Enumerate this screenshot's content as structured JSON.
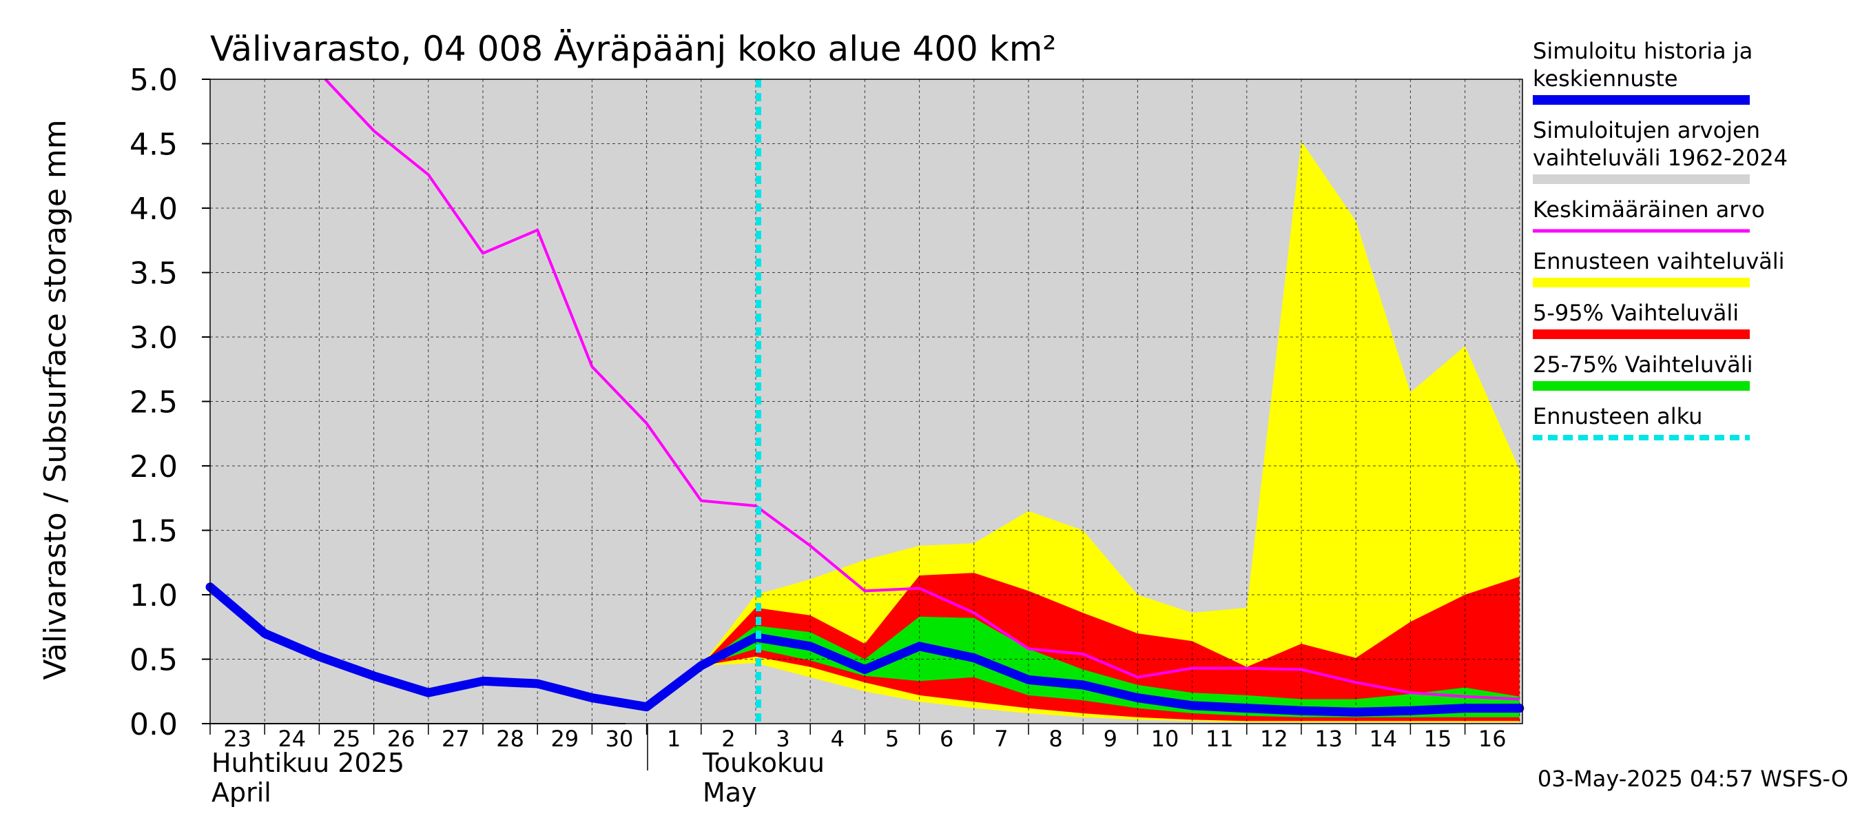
{
  "chart_data": {
    "type": "area",
    "title": "Välivarasto, 04 008 Äyräpäänj koko alue 400 km²",
    "ylabel": "Välivarasto / Subsurface storage  mm",
    "ylim": [
      0.0,
      5.0
    ],
    "y_ticks": [
      "0.0",
      "0.5",
      "1.0",
      "1.5",
      "2.0",
      "2.5",
      "3.0",
      "3.5",
      "4.0",
      "4.5",
      "5.0"
    ],
    "x_days": [
      "23",
      "24",
      "25",
      "26",
      "27",
      "28",
      "29",
      "30",
      "1",
      "2",
      "3",
      "4",
      "5",
      "6",
      "7",
      "8",
      "9",
      "10",
      "11",
      "12",
      "13",
      "14",
      "15",
      "16"
    ],
    "month_labels": [
      {
        "fi": "Huhtikuu  2025",
        "en": "April"
      },
      {
        "fi": "Toukokuu",
        "en": "May"
      }
    ],
    "grid": true,
    "legend_position": "right",
    "forecast_start_day_index": 10,
    "colors": {
      "plot_bg": "#d3d3d3",
      "history_range": "#d3d3d3",
      "mean": "#ff00ff",
      "forecast_range": "#ffff00",
      "range_5_95": "#ff0000",
      "range_25_75": "#00e600",
      "median": "#0000ee",
      "forecast_start": "#00e5e5"
    },
    "series": {
      "simulated_median": [
        1.06,
        0.7,
        0.52,
        0.37,
        0.24,
        0.33,
        0.31,
        0.2,
        0.13,
        0.45,
        0.67,
        0.6,
        0.42,
        0.6,
        0.51,
        0.34,
        0.3,
        0.2,
        0.14,
        0.12,
        0.1,
        0.09,
        0.1,
        0.12,
        0.12
      ],
      "mean_value": [
        null,
        null,
        5.05,
        4.6,
        4.26,
        3.65,
        3.83,
        2.77,
        2.33,
        1.73,
        1.69,
        1.38,
        1.03,
        1.05,
        0.86,
        0.58,
        0.54,
        0.36,
        0.43,
        0.43,
        0.42,
        0.32,
        0.24,
        0.21,
        0.19
      ],
      "forecast_range_upper": [
        null,
        null,
        null,
        null,
        null,
        null,
        null,
        null,
        null,
        0.45,
        1.0,
        1.12,
        1.27,
        1.38,
        1.4,
        1.65,
        1.5,
        1.0,
        0.86,
        0.9,
        4.52,
        3.9,
        2.57,
        2.93,
        1.97
      ],
      "forecast_range_lower": [
        null,
        null,
        null,
        null,
        null,
        null,
        null,
        null,
        null,
        0.45,
        0.47,
        0.36,
        0.25,
        0.17,
        0.12,
        0.08,
        0.05,
        0.03,
        0.02,
        0.01,
        0.01,
        0.01,
        0.01,
        0.01,
        0.01
      ],
      "p95": [
        null,
        null,
        null,
        null,
        null,
        null,
        null,
        null,
        null,
        0.45,
        0.9,
        0.84,
        0.62,
        1.15,
        1.17,
        1.03,
        0.86,
        0.7,
        0.64,
        0.44,
        0.62,
        0.51,
        0.79,
        1.0,
        1.14
      ],
      "p5": [
        null,
        null,
        null,
        null,
        null,
        null,
        null,
        null,
        null,
        0.45,
        0.52,
        0.44,
        0.32,
        0.22,
        0.17,
        0.12,
        0.08,
        0.05,
        0.03,
        0.02,
        0.02,
        0.02,
        0.02,
        0.02,
        0.02
      ],
      "p75": [
        null,
        null,
        null,
        null,
        null,
        null,
        null,
        null,
        null,
        0.45,
        0.76,
        0.71,
        0.5,
        0.83,
        0.82,
        0.58,
        0.42,
        0.3,
        0.24,
        0.22,
        0.19,
        0.19,
        0.23,
        0.28,
        0.21
      ],
      "p25": [
        null,
        null,
        null,
        null,
        null,
        null,
        null,
        null,
        null,
        0.45,
        0.58,
        0.49,
        0.37,
        0.33,
        0.36,
        0.22,
        0.18,
        0.12,
        0.08,
        0.06,
        0.05,
        0.05,
        0.05,
        0.05,
        0.05
      ]
    }
  },
  "legend": {
    "items": [
      {
        "label": "Simuloitu historia ja keskiennuste",
        "lines": [
          "Simuloitu historia ja",
          "keskiennuste"
        ],
        "color": "#0000ee",
        "style": "thick"
      },
      {
        "label": "Simuloitujen arvojen vaihteluväli 1962-2024",
        "lines": [
          "Simuloitujen arvojen",
          "vaihteluväli 1962-2024"
        ],
        "color": "#d3d3d3",
        "style": "band"
      },
      {
        "label": "Keskimääräinen arvo",
        "lines": [
          "Keskimääräinen arvo"
        ],
        "color": "#ff00ff",
        "style": "thin"
      },
      {
        "label": "Ennusteen vaihteluväli",
        "lines": [
          "Ennusteen vaihteluväli"
        ],
        "color": "#ffff00",
        "style": "band"
      },
      {
        "label": "5-95% Vaihteluväli",
        "lines": [
          "5-95% Vaihteluväli"
        ],
        "color": "#ff0000",
        "style": "band"
      },
      {
        "label": "25-75% Vaihteluväli",
        "lines": [
          "25-75% Vaihteluväli"
        ],
        "color": "#00e600",
        "style": "band"
      },
      {
        "label": "Ennusteen alku",
        "lines": [
          "Ennusteen alku"
        ],
        "color": "#00e5e5",
        "style": "dashed"
      }
    ]
  },
  "footer": {
    "timestamp": "03-May-2025 04:57 WSFS-O"
  }
}
